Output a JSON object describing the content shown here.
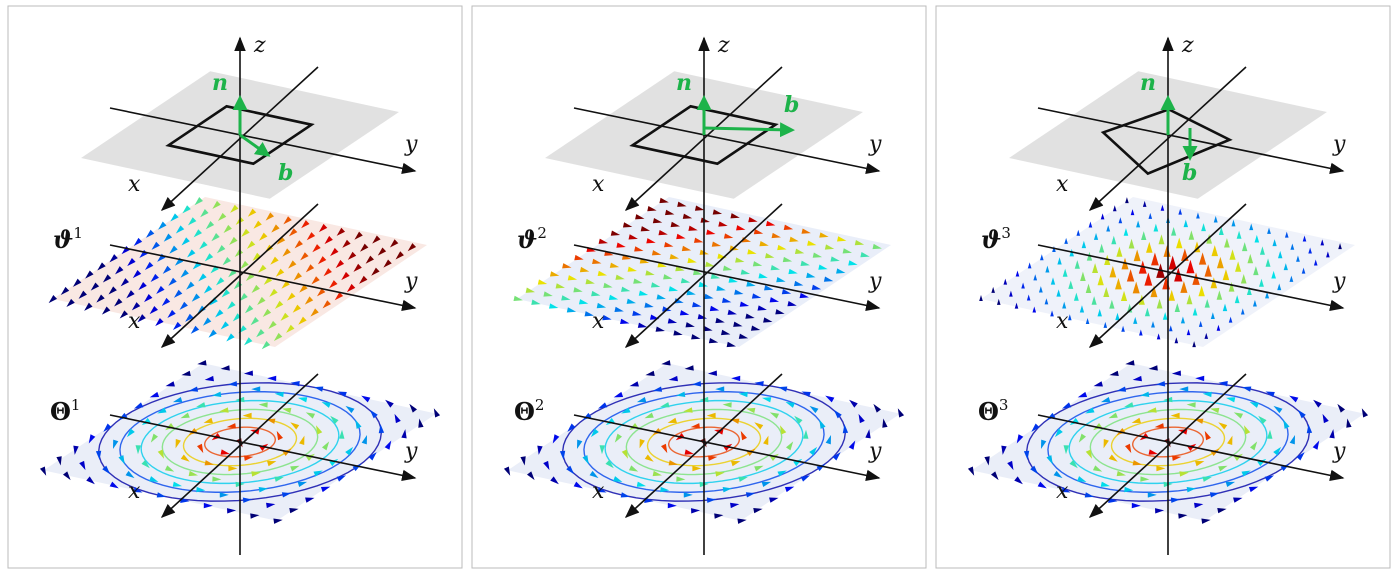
{
  "panels": [
    {
      "z": "z",
      "n": "n",
      "b": "b",
      "axes": [
        {
          "y": "y",
          "x": "x"
        },
        {
          "y": "y",
          "x": "x"
        },
        {
          "y": "y",
          "x": "x"
        }
      ],
      "field": {
        "symbol": "ϑ",
        "index": "1"
      },
      "potential": {
        "symbol": "Θ",
        "index": "1"
      }
    },
    {
      "z": "z",
      "n": "n",
      "b": "b",
      "axes": [
        {
          "y": "y",
          "x": "x"
        },
        {
          "y": "y",
          "x": "x"
        },
        {
          "y": "y",
          "x": "x"
        }
      ],
      "field": {
        "symbol": "ϑ",
        "index": "2"
      },
      "potential": {
        "symbol": "Θ",
        "index": "2"
      }
    },
    {
      "z": "z",
      "n": "n",
      "b": "b",
      "axes": [
        {
          "y": "y",
          "x": "x"
        },
        {
          "y": "y",
          "x": "x"
        },
        {
          "y": "y",
          "x": "x"
        }
      ],
      "field": {
        "symbol": "ϑ",
        "index": "3"
      },
      "potential": {
        "symbol": "Θ",
        "index": "3"
      }
    }
  ]
}
